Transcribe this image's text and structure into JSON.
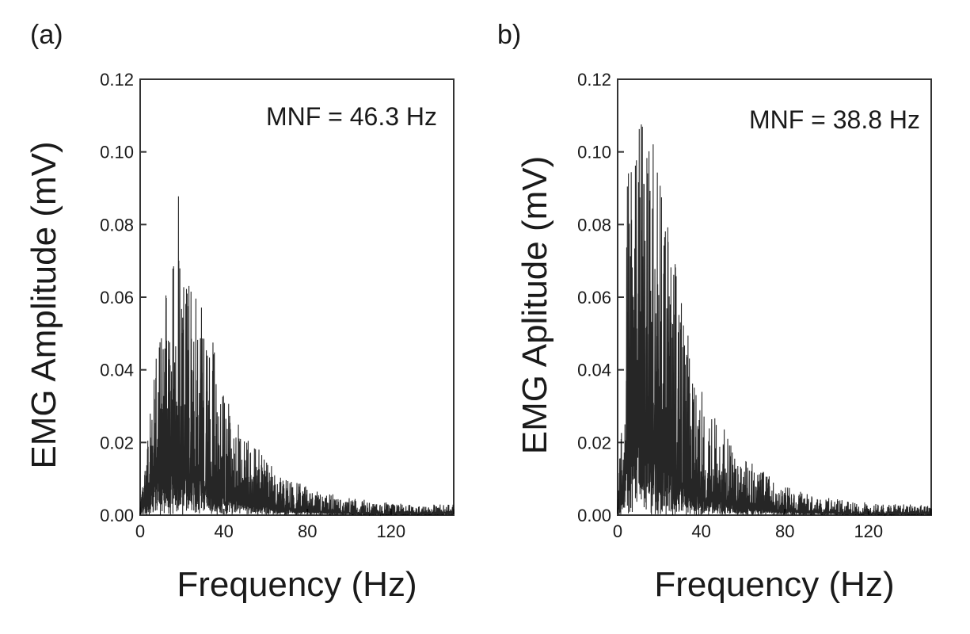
{
  "chart_data": [
    {
      "type": "line",
      "panel_label": "(a)",
      "annotation": "MNF = 46.3 Hz",
      "xlabel": "Frequency (Hz)",
      "ylabel": "EMG Amplitude (mV)",
      "xlim": [
        0,
        150
      ],
      "ylim": [
        0,
        0.12
      ],
      "xticks": [
        "0",
        "40",
        "80",
        "120"
      ],
      "xtick_values": [
        0,
        40,
        80,
        120
      ],
      "yticks": [
        "0.00",
        "0.02",
        "0.04",
        "0.06",
        "0.08",
        "0.10",
        "0.12"
      ],
      "ytick_values": [
        0,
        0.02,
        0.04,
        0.06,
        0.08,
        0.1,
        0.12
      ],
      "line_color": "#000000",
      "series": [
        {
          "x": [
            0,
            2,
            4,
            6,
            8,
            10,
            12,
            14,
            16,
            18,
            20,
            22,
            24,
            26,
            28,
            30,
            32,
            34,
            36,
            38,
            40,
            45,
            50,
            55,
            60,
            70,
            80,
            90,
            100,
            110,
            120,
            130,
            140,
            150
          ],
          "upper": [
            0.003,
            0.012,
            0.03,
            0.045,
            0.05,
            0.055,
            0.06,
            0.065,
            0.07,
            0.094,
            0.068,
            0.072,
            0.065,
            0.065,
            0.065,
            0.06,
            0.055,
            0.05,
            0.045,
            0.04,
            0.035,
            0.028,
            0.025,
            0.02,
            0.015,
            0.01,
            0.008,
            0.006,
            0.005,
            0.004,
            0.004,
            0.003,
            0.003,
            0.003
          ],
          "mean": [
            0.002,
            0.008,
            0.015,
            0.02,
            0.025,
            0.028,
            0.03,
            0.03,
            0.032,
            0.03,
            0.03,
            0.03,
            0.029,
            0.028,
            0.026,
            0.024,
            0.022,
            0.02,
            0.018,
            0.016,
            0.014,
            0.012,
            0.01,
            0.008,
            0.006,
            0.004,
            0.003,
            0.002,
            0.0015,
            0.001,
            0.001,
            0.001,
            0.001,
            0.001
          ]
        }
      ]
    },
    {
      "type": "line",
      "panel_label": "b)",
      "annotation": "MNF = 38.8 Hz",
      "xlabel": "Frequency (Hz)",
      "ylabel": "EMG Aplitude (mV)",
      "xlim": [
        0,
        150
      ],
      "ylim": [
        0,
        0.12
      ],
      "xticks": [
        "0",
        "40",
        "80",
        "120"
      ],
      "xtick_values": [
        0,
        40,
        80,
        120
      ],
      "yticks": [
        "0.00",
        "0.02",
        "0.04",
        "0.06",
        "0.08",
        "0.10",
        "0.12"
      ],
      "ytick_values": [
        0,
        0.02,
        0.04,
        0.06,
        0.08,
        0.1,
        0.12
      ],
      "line_color": "#000000",
      "series": [
        {
          "x": [
            0,
            2,
            4,
            6,
            8,
            10,
            12,
            14,
            16,
            18,
            20,
            22,
            24,
            26,
            28,
            30,
            32,
            34,
            36,
            38,
            40,
            45,
            50,
            55,
            60,
            70,
            80,
            90,
            100,
            110,
            120,
            130,
            140,
            150
          ],
          "upper": [
            0.004,
            0.03,
            0.09,
            0.11,
            0.12,
            0.105,
            0.115,
            0.12,
            0.11,
            0.1,
            0.095,
            0.085,
            0.08,
            0.075,
            0.07,
            0.06,
            0.055,
            0.05,
            0.045,
            0.04,
            0.035,
            0.03,
            0.025,
            0.02,
            0.016,
            0.012,
            0.008,
            0.006,
            0.005,
            0.004,
            0.004,
            0.003,
            0.003,
            0.003
          ],
          "mean": [
            0.002,
            0.015,
            0.035,
            0.045,
            0.05,
            0.052,
            0.05,
            0.048,
            0.045,
            0.042,
            0.038,
            0.035,
            0.032,
            0.03,
            0.027,
            0.024,
            0.021,
            0.019,
            0.017,
            0.015,
            0.013,
            0.011,
            0.009,
            0.007,
            0.006,
            0.004,
            0.003,
            0.002,
            0.0015,
            0.001,
            0.001,
            0.001,
            0.001,
            0.001
          ]
        }
      ]
    }
  ]
}
